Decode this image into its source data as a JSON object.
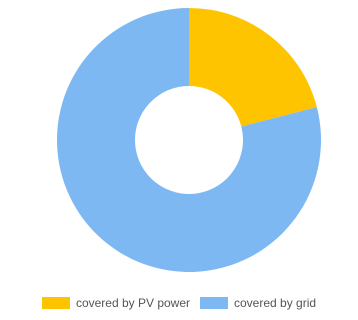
{
  "chart_data": {
    "type": "pie",
    "donut": true,
    "categories": [
      "covered by PV power",
      "covered by grid"
    ],
    "values": [
      21,
      79
    ],
    "colors": [
      "#FFC400",
      "#7DB8F2"
    ],
    "legend": "bottom-center",
    "title": ""
  }
}
